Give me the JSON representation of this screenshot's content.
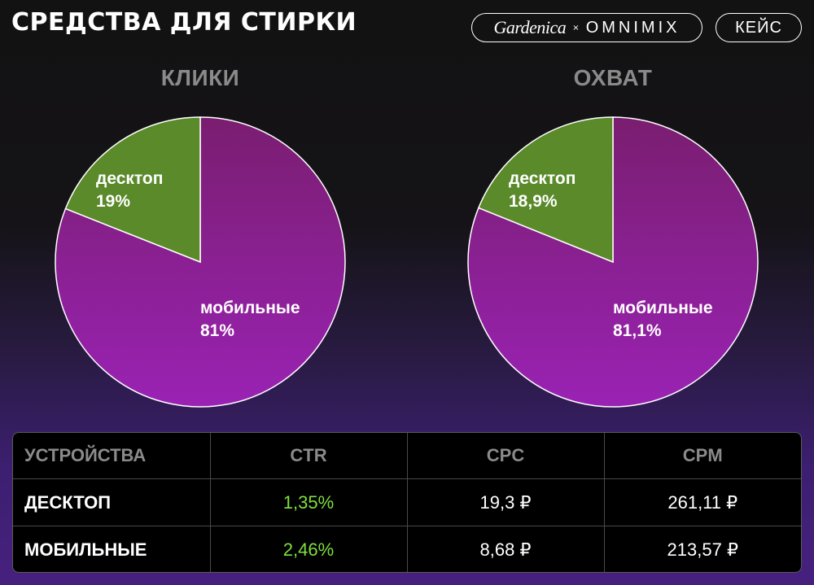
{
  "header": {
    "title": "СРЕДСТВА ДЛЯ СТИРКИ",
    "brand_left": "Gardenica",
    "brand_sep": "×",
    "brand_right": "OMNIMIX",
    "case_label": "КЕЙС"
  },
  "colors": {
    "mobile": "#8a1e86",
    "desktop": "#5a8a2a",
    "ctr_green": "#7ee03e"
  },
  "chart_data": [
    {
      "type": "pie",
      "title": "КЛИКИ",
      "slices": [
        {
          "label": "мобильные",
          "value": 81,
          "display": "81%",
          "color": "#8a1e86"
        },
        {
          "label": "десктоп",
          "value": 19,
          "display": "19%",
          "color": "#5a8a2a"
        }
      ]
    },
    {
      "type": "pie",
      "title": "ОХВАТ",
      "slices": [
        {
          "label": "мобильные",
          "value": 81.1,
          "display": "81,1%",
          "color": "#8a1e86"
        },
        {
          "label": "десктоп",
          "value": 18.9,
          "display": "18,9%",
          "color": "#5a8a2a"
        }
      ]
    },
    {
      "type": "table",
      "columns": [
        "УСТРОЙСТВА",
        "CTR",
        "CPC",
        "CPM"
      ],
      "rows": [
        [
          "ДЕСКТОП",
          "1,35%",
          "19,3 ₽",
          "261,11 ₽"
        ],
        [
          "МОБИЛЬНЫЕ",
          "2,46%",
          "8,68 ₽",
          "213,57 ₽"
        ]
      ]
    }
  ]
}
